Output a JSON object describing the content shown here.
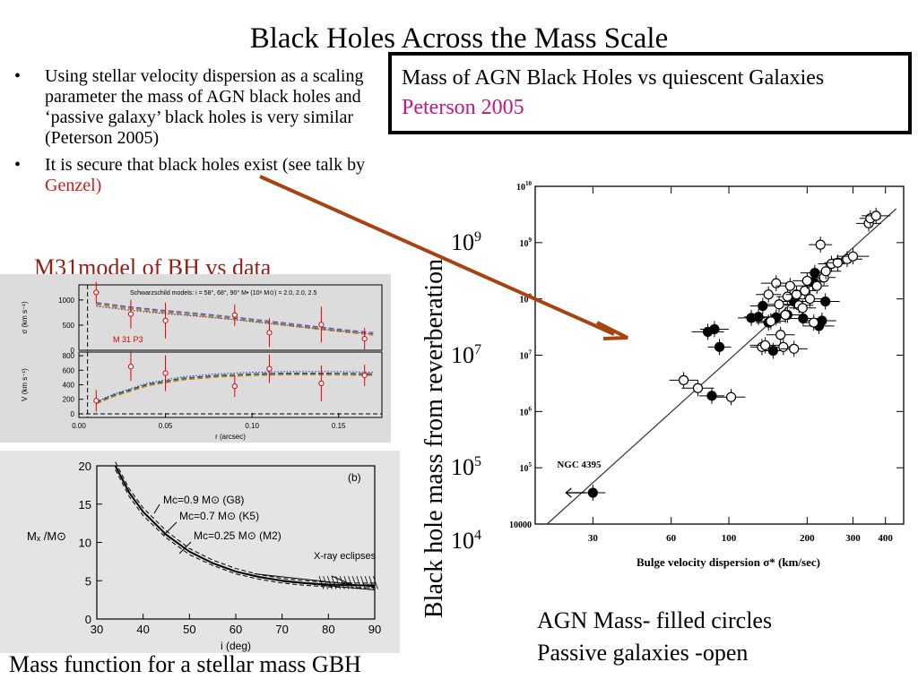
{
  "slide": {
    "title": "Black Holes Across the Mass Scale",
    "bullets": [
      {
        "text": "Using stellar velocity dispersion as a scaling parameter the mass of AGN black holes and ‘passive galaxy’ black holes is very similar (Peterson 2005)",
        "highlight": ""
      },
      {
        "text": "It is  secure that black holes exist (see talk by ",
        "highlight": "Genzel)"
      }
    ],
    "callout": {
      "text": "Mass of AGN Black Holes vs quiescent Galaxies ",
      "highlight": "Peterson  2005"
    },
    "captions": {
      "m31": "M31model of BH vs data",
      "stellar": "Mass function for a stellar mass GBH",
      "agn_line1": "AGN Mass- filled circles",
      "agn_line2": "Passive galaxies -open"
    },
    "msigma_axis": {
      "title": "Black hole mass from reverberation",
      "ticks": [
        {
          "base": "10",
          "exp": "9"
        },
        {
          "base": "10",
          "exp": "7"
        },
        {
          "base": "10",
          "exp": "5"
        },
        {
          "base": "10",
          "exp": "4"
        }
      ]
    },
    "colors": {
      "arrow": "#a8420f",
      "genzel": "#d41a1a",
      "peterson": "#c0168c",
      "m31_caption": "#9a1b12"
    }
  },
  "chart_data": [
    {
      "type": "scatter",
      "xlabel": "Bulge velocity dispersion σ* (km/sec)",
      "ylabel": "",
      "xscale": "log",
      "yscale": "log",
      "xlim": [
        18,
        470
      ],
      "ylim": [
        10000,
        10000000000
      ],
      "x_tick_labels": [
        "30",
        "60",
        "100",
        "200",
        "300",
        "400"
      ],
      "y_tick_labels": [
        "10000",
        "10^5",
        "10^6",
        "10^7",
        "10^8",
        "10^9",
        "10^10"
      ],
      "annotation": {
        "text": "NGC 4395",
        "x": 30,
        "y": 36000
      },
      "fit_line": {
        "x": [
          20,
          440
        ],
        "y": [
          10000,
          4000000000
        ]
      },
      "series": [
        {
          "name": "AGN Mass- filled circles",
          "marker": "filled",
          "points": [
            [
              30,
              36000
            ],
            [
              83,
              26000000
            ],
            [
              88,
              29000000
            ],
            [
              92,
              14000000
            ],
            [
              86,
              1900000
            ],
            [
              122,
              46000000
            ],
            [
              130,
              48000000
            ],
            [
              135,
              75000000
            ],
            [
              142,
              38000000
            ],
            [
              148,
              12000000
            ],
            [
              152,
              47000000
            ],
            [
              168,
              52000000
            ],
            [
              178,
              90000000
            ],
            [
              193,
              45000000
            ],
            [
              210,
              200000000
            ],
            [
              214,
              290000000
            ],
            [
              222,
              33000000
            ],
            [
              228,
              41000000
            ],
            [
              235,
              90000000
            ]
          ]
        },
        {
          "name": "Passive galaxies -open",
          "marker": "open",
          "points": [
            [
              67,
              3600000
            ],
            [
              76,
              2600000
            ],
            [
              102,
              1800000
            ],
            [
              134,
              14000000
            ],
            [
              138,
              15000000
            ],
            [
              142,
              120000000
            ],
            [
              145,
              40000000
            ],
            [
              152,
              190000000
            ],
            [
              156,
              80000000
            ],
            [
              158,
              23000000
            ],
            [
              162,
              14000000
            ],
            [
              165,
              52000000
            ],
            [
              168,
              110000000
            ],
            [
              172,
              170000000
            ],
            [
              178,
              13000000
            ],
            [
              182,
              120000000
            ],
            [
              186,
              77000000
            ],
            [
              192,
              69000000
            ],
            [
              196,
              140000000
            ],
            [
              200,
              210000000
            ],
            [
              205,
              100000000
            ],
            [
              212,
              38000000
            ],
            [
              218,
              170000000
            ],
            [
              225,
              920000000
            ],
            [
              232,
              240000000
            ],
            [
              236,
              310000000
            ],
            [
              248,
              420000000
            ],
            [
              262,
              440000000
            ],
            [
              285,
              510000000
            ],
            [
              300,
              570000000
            ],
            [
              345,
              2200000000
            ],
            [
              350,
              2700000000
            ],
            [
              368,
              3000000000
            ]
          ]
        }
      ]
    },
    {
      "type": "line",
      "title": "M 31  P3",
      "legend": "Schwarzschild models: i = 58°, 68°, 90°  M• (10⁸ M⊙) = 2.0, 2.0, 2.5",
      "xlabel": "r (arcsec)",
      "x_tick_labels": [
        "0.00",
        "0.05",
        "0.10",
        "0.15"
      ],
      "xlim": [
        0.0,
        0.175
      ],
      "panels": [
        {
          "ylabel": "σ (km s⁻¹)",
          "ylim": [
            0,
            1300
          ],
          "y_tick_labels": [
            "0",
            "500",
            "1000"
          ],
          "data_r": [
            0.01,
            0.03,
            0.05,
            0.09,
            0.11,
            0.14,
            0.165
          ],
          "data_values": [
            1150,
            720,
            590,
            700,
            350,
            510,
            230
          ],
          "model_r": [
            0.01,
            0.03,
            0.05,
            0.07,
            0.09,
            0.11,
            0.13,
            0.15,
            0.17
          ],
          "model_values": [
            950,
            860,
            790,
            730,
            660,
            580,
            500,
            420,
            350
          ],
          "model_colors": [
            "#7a2fd9",
            "#2a9a2a",
            "#ff6600"
          ]
        },
        {
          "ylabel": "V (km s⁻¹)",
          "ylim": [
            -50,
            850
          ],
          "y_tick_labels": [
            "0",
            "200",
            "400",
            "600",
            "800"
          ],
          "data_r": [
            0.01,
            0.03,
            0.05,
            0.09,
            0.11,
            0.14,
            0.165
          ],
          "data_values": [
            180,
            650,
            560,
            380,
            620,
            420,
            530
          ],
          "model_r": [
            0.01,
            0.02,
            0.04,
            0.06,
            0.08,
            0.1,
            0.12,
            0.14,
            0.16,
            0.17
          ],
          "model_values": [
            160,
            260,
            410,
            490,
            530,
            550,
            560,
            560,
            555,
            550
          ],
          "model_colors": [
            "#1a3aa0",
            "#2a9a2a",
            "#ff6600"
          ]
        }
      ]
    },
    {
      "type": "line",
      "title": "(b)",
      "xlabel": "i (deg)",
      "ylabel": "Mₓ /M⊙",
      "xlim": [
        30,
        90
      ],
      "ylim": [
        0,
        20
      ],
      "x_tick_labels": [
        "30",
        "40",
        "50",
        "60",
        "70",
        "80",
        "90"
      ],
      "y_tick_labels": [
        "0",
        "5",
        "10",
        "15",
        "20"
      ],
      "annotation": "X-ray eclipses",
      "series": [
        {
          "name": "Mᴄ=0.9 M⊙ (G8)",
          "x": [
            34,
            37,
            40,
            45,
            50,
            55,
            60,
            65,
            70,
            75,
            80,
            85,
            90
          ],
          "y": [
            20.5,
            17,
            14.5,
            11.5,
            9.2,
            7.7,
            6.6,
            5.8,
            5.3,
            5.0,
            4.8,
            4.7,
            4.7
          ]
        },
        {
          "name": "Mᴄ=0.7 M⊙ (K5)",
          "x": [
            34,
            37,
            40,
            45,
            50,
            55,
            60,
            65,
            70,
            75,
            80,
            85,
            90
          ],
          "y": [
            20,
            16.5,
            14,
            11,
            8.8,
            7.3,
            6.2,
            5.5,
            5.0,
            4.7,
            4.5,
            4.4,
            4.4
          ]
        },
        {
          "name": "Mᴄ=0.25 M⊙ (M2)",
          "x": [
            34,
            37,
            40,
            45,
            50,
            55,
            60,
            65,
            70,
            75,
            80,
            85,
            90
          ],
          "y": [
            19.5,
            16,
            13.5,
            10.6,
            8.4,
            7.0,
            5.9,
            5.2,
            4.7,
            4.4,
            4.2,
            4.1,
            4.1
          ]
        }
      ]
    }
  ]
}
